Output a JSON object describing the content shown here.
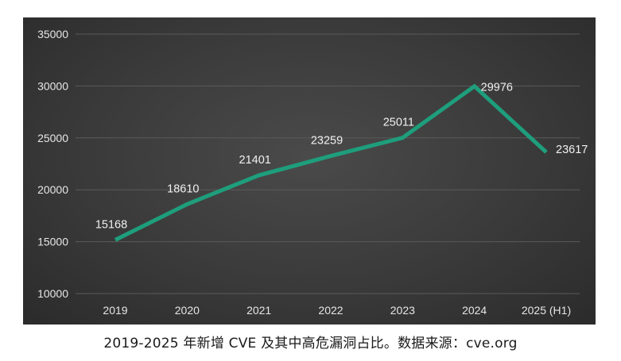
{
  "caption": "2019-2025 年新增 CVE 及其中高危漏洞占比。数据来源：cve.org",
  "colors": {
    "line": "#1e9e7c",
    "background": "#3a3a3a",
    "grid": "#5a5a5a",
    "text": "#e6e6e6"
  },
  "chart_data": {
    "type": "line",
    "categories": [
      "2019",
      "2020",
      "2021",
      "2022",
      "2023",
      "2024",
      "2025 (H1)"
    ],
    "series": [
      {
        "values": [
          15168,
          18610,
          21401,
          23259,
          25011,
          29976,
          23617
        ]
      }
    ],
    "data_labels": [
      "15168",
      "18610",
      "21401",
      "23259",
      "25011",
      "29976",
      "23617"
    ],
    "y_ticks": [
      "10000",
      "15000",
      "20000",
      "25000",
      "30000",
      "35000"
    ],
    "ylim": [
      10000,
      35000
    ],
    "grid": true,
    "legend": "none"
  }
}
